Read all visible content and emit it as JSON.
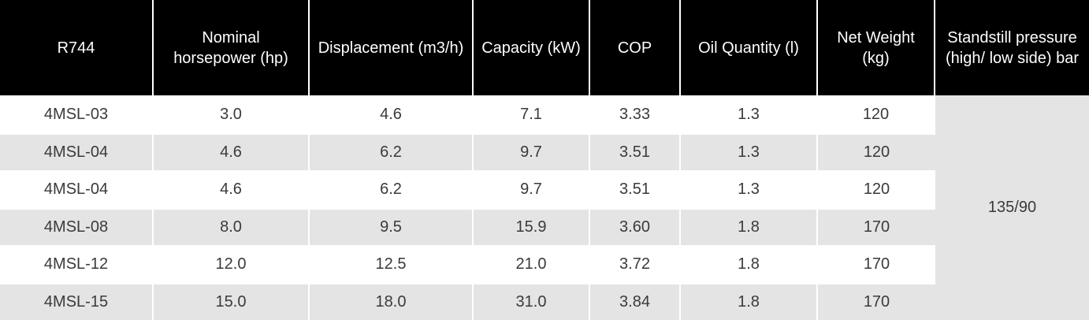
{
  "table": {
    "headers": [
      "R744",
      "Nominal horsepower (hp)",
      "Displacement (m3/h)",
      "Capacity (kW)",
      "COP",
      "Oil Quantity (l)",
      "Net Weight (kg)",
      "Standstill pressure (high/ low side) bar"
    ],
    "rows": [
      {
        "model": "4MSL-03",
        "hp": "3.0",
        "displacement": "4.6",
        "capacity": "7.1",
        "cop": "3.33",
        "oil": "1.3",
        "weight": "120"
      },
      {
        "model": "4MSL-04",
        "hp": "4.6",
        "displacement": "6.2",
        "capacity": "9.7",
        "cop": "3.51",
        "oil": "1.3",
        "weight": "120"
      },
      {
        "model": "4MSL-04",
        "hp": "4.6",
        "displacement": "6.2",
        "capacity": "9.7",
        "cop": "3.51",
        "oil": "1.3",
        "weight": "120"
      },
      {
        "model": "4MSL-08",
        "hp": "8.0",
        "displacement": "9.5",
        "capacity": "15.9",
        "cop": "3.60",
        "oil": "1.8",
        "weight": "170"
      },
      {
        "model": "4MSL-12",
        "hp": "12.0",
        "displacement": "12.5",
        "capacity": "21.0",
        "cop": "3.72",
        "oil": "1.8",
        "weight": "170"
      },
      {
        "model": "4MSL-15",
        "hp": "15.0",
        "displacement": "18.0",
        "capacity": "31.0",
        "cop": "3.84",
        "oil": "1.8",
        "weight": "170"
      }
    ],
    "standstill_pressure": "135/90"
  },
  "colors": {
    "header_bg": "#000000",
    "header_text": "#ffffff",
    "row_alt_bg": "#e4e4e4",
    "cell_text": "#3a3a3a"
  }
}
